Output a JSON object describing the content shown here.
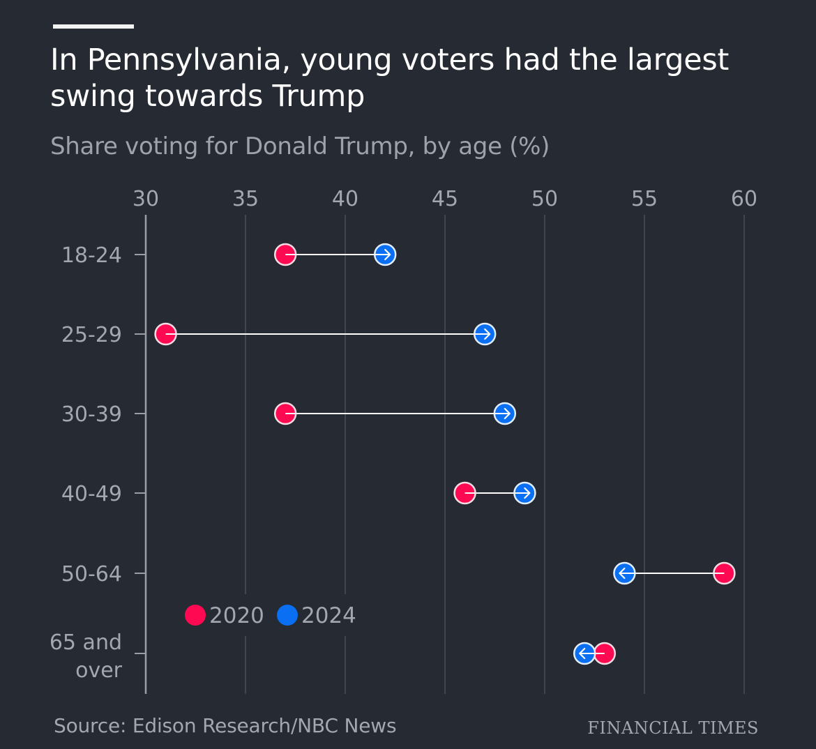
{
  "header": {
    "title": "In Pennsylvania, young voters had the largest swing towards Trump",
    "subtitle": "Share voting for Donald Trump, by age (%)"
  },
  "footer": {
    "source": "Source: Edison Research/NBC News",
    "brand": "FINANCIAL TIMES"
  },
  "colors": {
    "background": "#262a33",
    "year_2020": "#ff0a52",
    "year_2024": "#0a6ff2",
    "connector": "#ffffff",
    "gridline": "#4a4e57",
    "axis_text": "#a3a7b0"
  },
  "chart_data": {
    "type": "dumbbell",
    "title": "In Pennsylvania, young voters had the largest swing towards Trump",
    "subtitle": "Share voting for Donald Trump, by age (%)",
    "xlabel": "",
    "ylabel": "",
    "xlim": [
      30,
      60
    ],
    "x_ticks": [
      "30",
      "35",
      "40",
      "45",
      "50",
      "55",
      "60"
    ],
    "x_tick_values": [
      30,
      35,
      40,
      45,
      50,
      55,
      60
    ],
    "categories": [
      "18-24",
      "25-29",
      "30-39",
      "40-49",
      "50-64",
      "65 and over"
    ],
    "category_label_lines": [
      [
        "18-24"
      ],
      [
        "25-29"
      ],
      [
        "30-39"
      ],
      [
        "40-49"
      ],
      [
        "50-64"
      ],
      [
        "65 and",
        "over"
      ]
    ],
    "series": [
      {
        "name": "2020",
        "values": [
          37,
          31,
          37,
          46,
          59,
          53
        ]
      },
      {
        "name": "2024",
        "values": [
          42,
          47,
          48,
          49,
          54,
          52
        ]
      }
    ],
    "legend": [
      "2020",
      "2024"
    ],
    "legend_position": "bottom-left inside plot",
    "grid": true,
    "source": "Source: Edison Research/NBC News"
  }
}
